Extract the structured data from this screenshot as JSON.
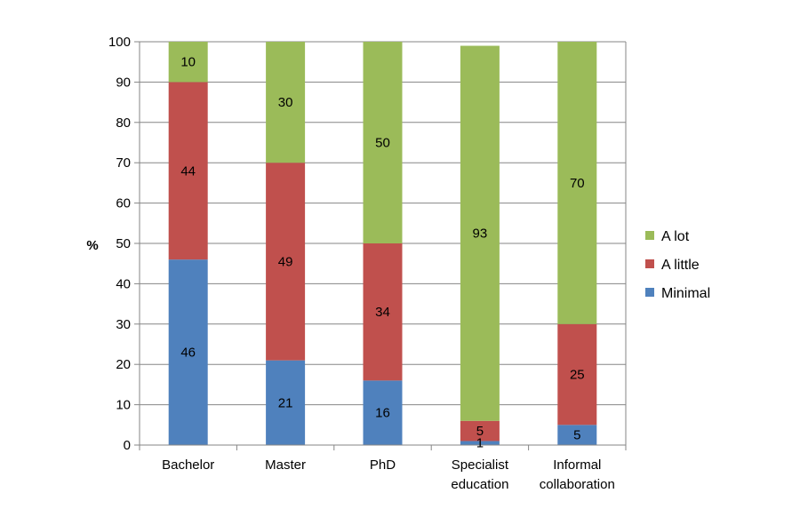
{
  "chart_data": {
    "type": "bar",
    "stacked": true,
    "ylabel": "%",
    "xlabel": "",
    "title": "",
    "ylim": [
      0,
      100
    ],
    "yticks": [
      0,
      10,
      20,
      30,
      40,
      50,
      60,
      70,
      80,
      90,
      100
    ],
    "grid": true,
    "legend_placement": "right",
    "categories": [
      [
        "Bachelor"
      ],
      [
        "Master"
      ],
      [
        "PhD"
      ],
      [
        "Specialist",
        "education"
      ],
      [
        "Informal",
        "collaboration"
      ]
    ],
    "series": [
      {
        "name": "Minimal",
        "color": "#4f81bd",
        "values": [
          46,
          21,
          16,
          1,
          5
        ]
      },
      {
        "name": "A little",
        "color": "#c0504d",
        "values": [
          44,
          49,
          34,
          5,
          25
        ]
      },
      {
        "name": "A lot",
        "color": "#9bbb59",
        "values": [
          10,
          30,
          50,
          93,
          70
        ]
      }
    ]
  }
}
